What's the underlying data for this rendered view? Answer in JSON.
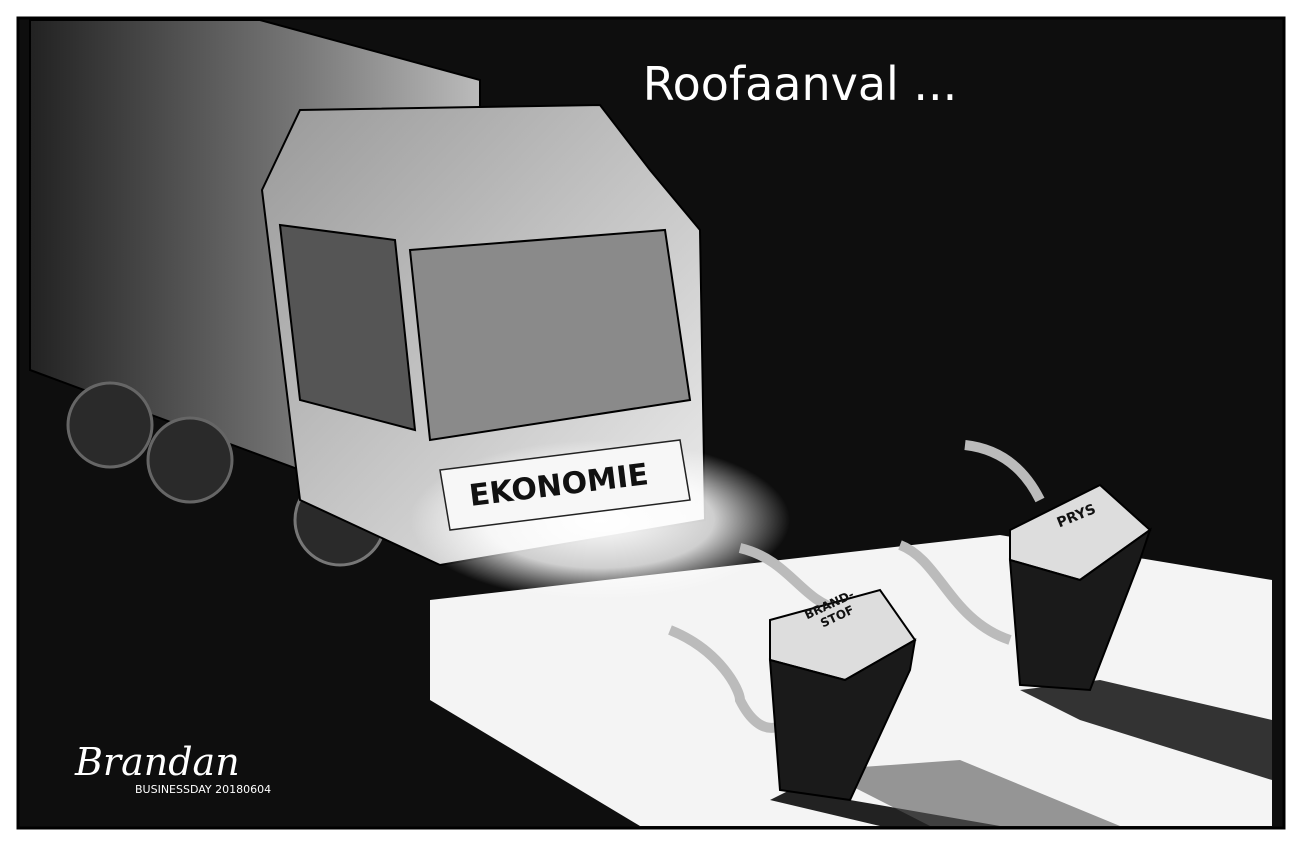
{
  "title": "Roofaanval ...",
  "labels": {
    "truck": "EKONOMIE",
    "pump_left": [
      "BRAND-",
      "STOF"
    ],
    "pump_right": "PRYS"
  },
  "signature": {
    "name": "Brandan",
    "publication": "BUSINESSDAY 20180604"
  }
}
